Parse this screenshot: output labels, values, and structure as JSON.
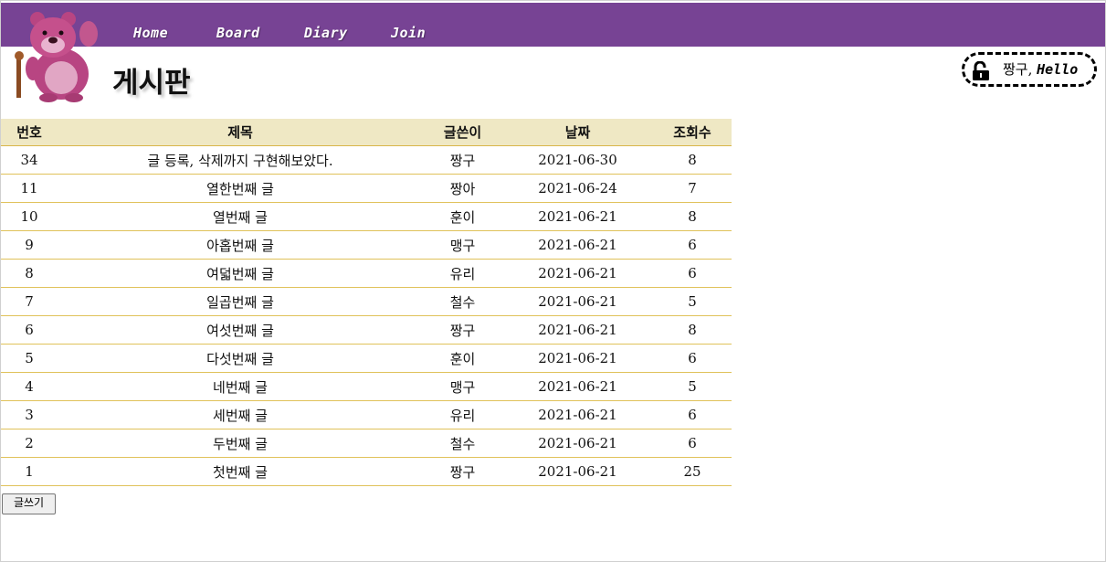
{
  "nav": {
    "items": [
      {
        "label": "Home"
      },
      {
        "label": "Board"
      },
      {
        "label": "Diary"
      },
      {
        "label": "Join"
      }
    ]
  },
  "page": {
    "title": "게시판"
  },
  "user": {
    "name": "짱구,",
    "hello": "Hello",
    "icon": "unlock-icon"
  },
  "table": {
    "headers": {
      "num": "번호",
      "title": "제목",
      "author": "글쓴이",
      "date": "날짜",
      "views": "조회수"
    },
    "rows": [
      {
        "num": "34",
        "title": "글 등록, 삭제까지 구현해보았다.",
        "author": "짱구",
        "date": "2021-06-30",
        "views": "8"
      },
      {
        "num": "11",
        "title": "열한번째 글",
        "author": "짱아",
        "date": "2021-06-24",
        "views": "7"
      },
      {
        "num": "10",
        "title": "열번째 글",
        "author": "훈이",
        "date": "2021-06-21",
        "views": "8"
      },
      {
        "num": "9",
        "title": "아홉번째 글",
        "author": "맹구",
        "date": "2021-06-21",
        "views": "6"
      },
      {
        "num": "8",
        "title": "여덟번째 글",
        "author": "유리",
        "date": "2021-06-21",
        "views": "6"
      },
      {
        "num": "7",
        "title": "일곱번째 글",
        "author": "철수",
        "date": "2021-06-21",
        "views": "5"
      },
      {
        "num": "6",
        "title": "여섯번째 글",
        "author": "짱구",
        "date": "2021-06-21",
        "views": "8"
      },
      {
        "num": "5",
        "title": "다섯번째 글",
        "author": "훈이",
        "date": "2021-06-21",
        "views": "6"
      },
      {
        "num": "4",
        "title": "네번째 글",
        "author": "맹구",
        "date": "2021-06-21",
        "views": "5"
      },
      {
        "num": "3",
        "title": "세번째 글",
        "author": "유리",
        "date": "2021-06-21",
        "views": "6"
      },
      {
        "num": "2",
        "title": "두번째 글",
        "author": "철수",
        "date": "2021-06-21",
        "views": "6"
      },
      {
        "num": "1",
        "title": "첫번째 글",
        "author": "짱구",
        "date": "2021-06-21",
        "views": "25"
      }
    ]
  },
  "actions": {
    "write_label": "글쓰기"
  },
  "colors": {
    "nav_bg": "#774394",
    "header_bg": "#efe8c4",
    "row_border": "#e0c25a"
  }
}
